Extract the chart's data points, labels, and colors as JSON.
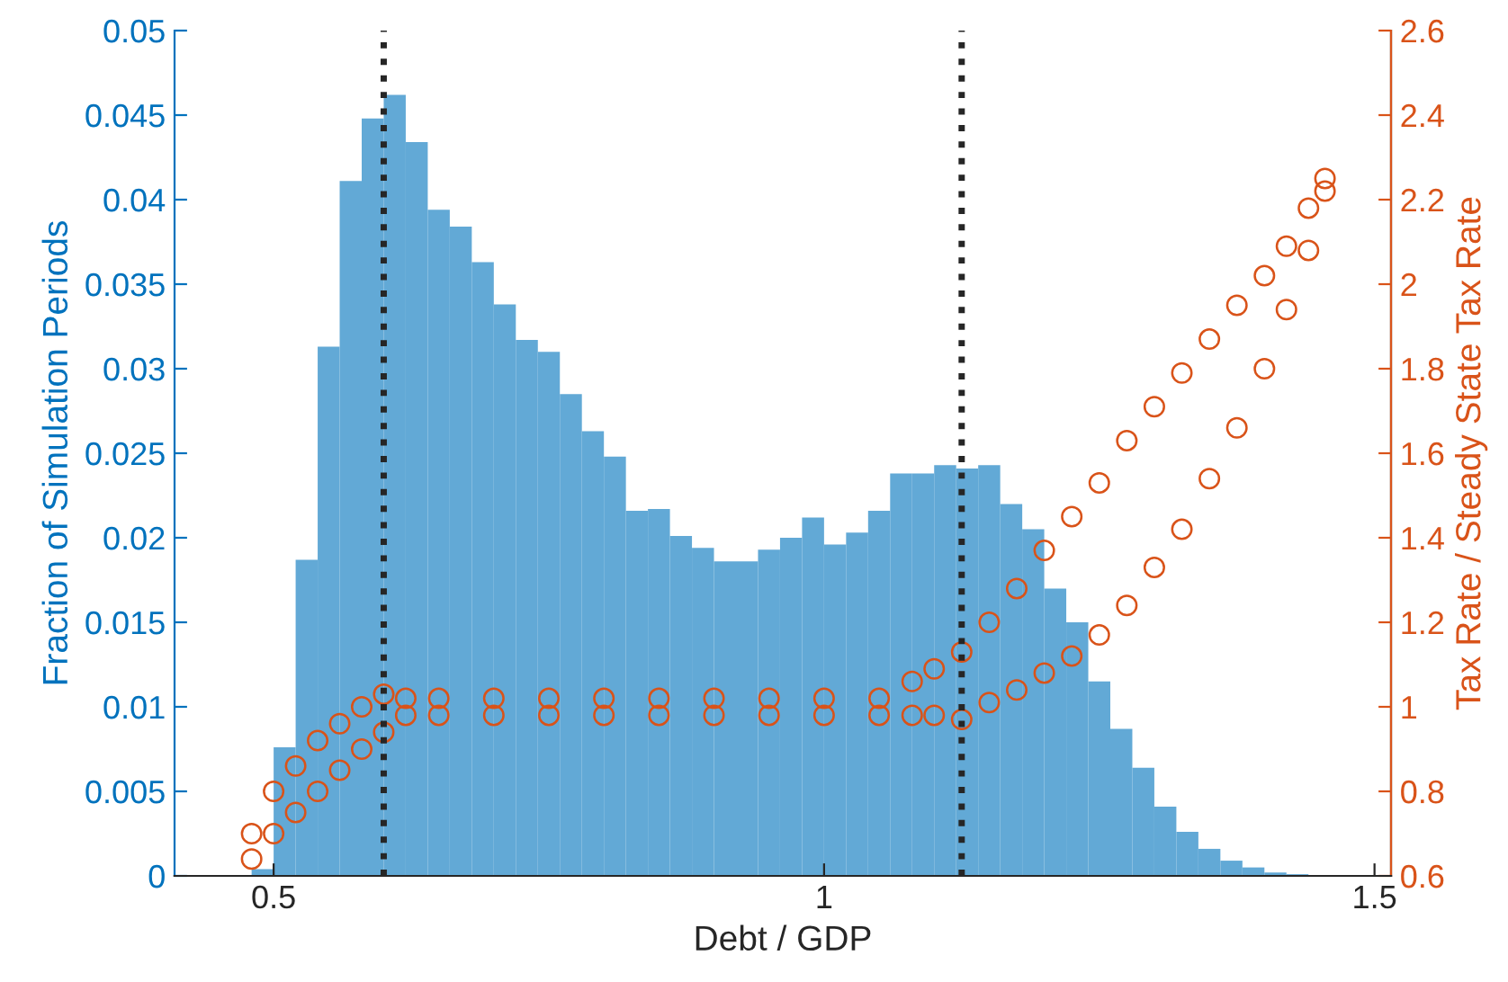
{
  "chart_data": {
    "type": "histogram",
    "xlabel": "Debt / GDP",
    "ylabel": "Fraction of Simulation Periods",
    "y2label": "Tax Rate / Steady State Tax Rate",
    "bins": [
      0.48,
      0.5,
      0.52,
      0.54,
      0.56,
      0.58,
      0.6,
      0.62,
      0.64,
      0.66,
      0.68,
      0.7,
      0.72,
      0.74,
      0.76,
      0.78,
      0.8,
      0.82,
      0.84,
      0.86,
      0.88,
      0.9,
      0.92,
      0.94,
      0.96,
      0.98,
      1.0,
      1.02,
      1.04,
      1.06,
      1.08,
      1.1,
      1.12,
      1.14,
      1.16,
      1.18,
      1.2,
      1.22,
      1.24,
      1.26,
      1.28,
      1.3,
      1.32,
      1.34,
      1.36,
      1.38,
      1.4,
      1.42,
      1.44
    ],
    "values": [
      0.0004,
      0.0076,
      0.0187,
      0.0313,
      0.0411,
      0.0448,
      0.0462,
      0.0434,
      0.0394,
      0.0384,
      0.0363,
      0.0338,
      0.0317,
      0.031,
      0.0285,
      0.0263,
      0.0248,
      0.0216,
      0.0217,
      0.0201,
      0.0194,
      0.0186,
      0.0186,
      0.0193,
      0.02,
      0.0212,
      0.0196,
      0.0203,
      0.0216,
      0.0238,
      0.0238,
      0.0243,
      0.0241,
      0.0243,
      0.022,
      0.0205,
      0.017,
      0.015,
      0.0115,
      0.0087,
      0.0064,
      0.0041,
      0.0026,
      0.0016,
      0.0009,
      0.0005,
      0.0002,
      0.0001
    ],
    "color": "#62a9d6",
    "series": [
      {
        "type": "scatter",
        "axis": "y2",
        "color": "#d95319",
        "marker": "circle",
        "x": [
          0.48,
          0.48,
          0.5,
          0.5,
          0.52,
          0.52,
          0.54,
          0.54,
          0.56,
          0.56,
          0.58,
          0.58,
          0.6,
          0.6,
          0.62,
          0.62,
          0.65,
          0.65,
          0.7,
          0.7,
          0.75,
          0.75,
          0.8,
          0.8,
          0.85,
          0.85,
          0.9,
          0.9,
          0.95,
          0.95,
          1.0,
          1.0,
          1.05,
          1.05,
          1.08,
          1.08,
          1.1,
          1.1,
          1.125,
          1.125,
          1.15,
          1.15,
          1.175,
          1.175,
          1.2,
          1.2,
          1.225,
          1.225,
          1.25,
          1.25,
          1.275,
          1.275,
          1.3,
          1.3,
          1.325,
          1.325,
          1.35,
          1.35,
          1.375,
          1.375,
          1.4,
          1.4,
          1.42,
          1.42,
          1.44,
          1.44,
          1.455,
          1.455
        ],
        "values": [
          0.64,
          0.7,
          0.7,
          0.8,
          0.75,
          0.86,
          0.8,
          0.92,
          0.85,
          0.96,
          0.9,
          1.0,
          0.94,
          1.03,
          0.98,
          1.02,
          0.98,
          1.02,
          0.98,
          1.02,
          0.98,
          1.02,
          0.98,
          1.02,
          0.98,
          1.02,
          0.98,
          1.02,
          0.98,
          1.02,
          0.98,
          1.02,
          0.98,
          1.02,
          0.98,
          1.06,
          0.98,
          1.09,
          0.97,
          1.13,
          1.01,
          1.2,
          1.04,
          1.28,
          1.08,
          1.37,
          1.12,
          1.45,
          1.17,
          1.53,
          1.24,
          1.63,
          1.33,
          1.71,
          1.42,
          1.79,
          1.54,
          1.87,
          1.66,
          1.95,
          1.8,
          2.02,
          1.94,
          2.09,
          2.08,
          2.18,
          2.22,
          2.25
        ]
      }
    ],
    "ref_lines": [
      {
        "axis": "x",
        "value": 0.6,
        "color": "#262626",
        "line_style": "dotted"
      },
      {
        "axis": "x",
        "value": 1.125,
        "color": "#262626",
        "line_style": "dotted"
      }
    ],
    "xlim": [
      0.41,
      1.515
    ],
    "xticks": [
      0.5,
      1,
      1.5
    ],
    "ylim": [
      0,
      0.05
    ],
    "yticks": [
      0,
      0.005,
      0.01,
      0.015,
      0.02,
      0.025,
      0.03,
      0.035,
      0.04,
      0.045,
      0.05
    ],
    "y2lim": [
      0.6,
      2.6
    ],
    "y2ticks": [
      0.6,
      0.8,
      1,
      1.2,
      1.4,
      1.6,
      1.8,
      2,
      2.2,
      2.4,
      2.6
    ],
    "grid": false,
    "legend": false
  }
}
